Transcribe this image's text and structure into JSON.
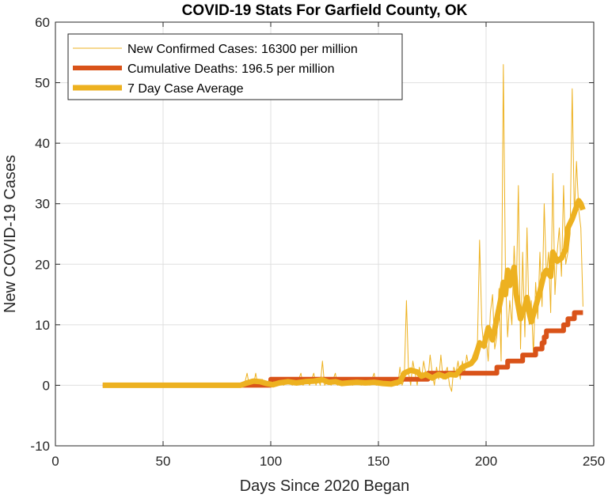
{
  "chart_data": {
    "type": "line",
    "title": "COVID-19 Stats For Garfield County, OK",
    "xlabel": "Days Since 2020 Began",
    "ylabel": "New COVID-19 Cases",
    "xlim": [
      0,
      250
    ],
    "ylim": [
      -10,
      60
    ],
    "xticks": [
      0,
      50,
      100,
      150,
      200,
      250
    ],
    "yticks": [
      -10,
      0,
      10,
      20,
      30,
      40,
      50,
      60
    ],
    "xtick_labels": [
      "0",
      "50",
      "100",
      "150",
      "200",
      "250"
    ],
    "ytick_labels": [
      "-10",
      "0",
      "10",
      "20",
      "30",
      "40",
      "50",
      "60"
    ],
    "grid": true,
    "legend_position": "top-left",
    "series": [
      {
        "name": "New Confirmed Cases: 16300 per million",
        "color": "#EDB120",
        "style": "thin",
        "points": [
          [
            22,
            0
          ],
          [
            86,
            0
          ],
          [
            88,
            0.5
          ],
          [
            89,
            2
          ],
          [
            90,
            0
          ],
          [
            91,
            1
          ],
          [
            92,
            0
          ],
          [
            93,
            2
          ],
          [
            94,
            0
          ],
          [
            96,
            1
          ],
          [
            98,
            0
          ],
          [
            100,
            0
          ],
          [
            101,
            1
          ],
          [
            102,
            0
          ],
          [
            104,
            1
          ],
          [
            106,
            0
          ],
          [
            108,
            1
          ],
          [
            110,
            0
          ],
          [
            111,
            1
          ],
          [
            112,
            0
          ],
          [
            114,
            2
          ],
          [
            115,
            0
          ],
          [
            117,
            1
          ],
          [
            118,
            0
          ],
          [
            120,
            2
          ],
          [
            121,
            0
          ],
          [
            122,
            1
          ],
          [
            123,
            0
          ],
          [
            124,
            4
          ],
          [
            125,
            0
          ],
          [
            127,
            1
          ],
          [
            128,
            0
          ],
          [
            130,
            2
          ],
          [
            131,
            0
          ],
          [
            133,
            1
          ],
          [
            134,
            0
          ],
          [
            136,
            1
          ],
          [
            138,
            0
          ],
          [
            140,
            1
          ],
          [
            142,
            0
          ],
          [
            144,
            1
          ],
          [
            146,
            0
          ],
          [
            148,
            2
          ],
          [
            149,
            0
          ],
          [
            151,
            1
          ],
          [
            153,
            0
          ],
          [
            155,
            1
          ],
          [
            157,
            0
          ],
          [
            159,
            0
          ],
          [
            160,
            3
          ],
          [
            161,
            0
          ],
          [
            162,
            1
          ],
          [
            163,
            14
          ],
          [
            164,
            2
          ],
          [
            165,
            0
          ],
          [
            166,
            4
          ],
          [
            167,
            2
          ],
          [
            168,
            0
          ],
          [
            169,
            3
          ],
          [
            170,
            1
          ],
          [
            171,
            4
          ],
          [
            172,
            2
          ],
          [
            173,
            1
          ],
          [
            174,
            5
          ],
          [
            175,
            2
          ],
          [
            176,
            0
          ],
          [
            177,
            3
          ],
          [
            178,
            1
          ],
          [
            179,
            5
          ],
          [
            180,
            1
          ],
          [
            181,
            2
          ],
          [
            182,
            3
          ],
          [
            183,
            0
          ],
          [
            184,
            -1
          ],
          [
            185,
            3
          ],
          [
            186,
            2
          ],
          [
            187,
            4
          ],
          [
            188,
            1
          ],
          [
            189,
            4
          ],
          [
            190,
            2
          ],
          [
            191,
            5
          ],
          [
            192,
            3
          ],
          [
            193,
            4
          ],
          [
            194,
            5
          ],
          [
            195,
            6
          ],
          [
            196,
            7
          ],
          [
            197,
            24
          ],
          [
            198,
            10
          ],
          [
            199,
            6
          ],
          [
            200,
            8
          ],
          [
            201,
            4
          ],
          [
            202,
            12
          ],
          [
            203,
            15
          ],
          [
            204,
            6
          ],
          [
            205,
            8
          ],
          [
            206,
            16
          ],
          [
            207,
            4
          ],
          [
            208,
            53
          ],
          [
            209,
            18
          ],
          [
            210,
            8
          ],
          [
            211,
            14
          ],
          [
            212,
            10
          ],
          [
            213,
            23
          ],
          [
            214,
            15
          ],
          [
            215,
            33
          ],
          [
            216,
            6
          ],
          [
            217,
            22
          ],
          [
            218,
            8
          ],
          [
            219,
            26
          ],
          [
            220,
            10
          ],
          [
            221,
            14
          ],
          [
            222,
            5
          ],
          [
            223,
            17
          ],
          [
            224,
            11
          ],
          [
            225,
            22
          ],
          [
            226,
            13
          ],
          [
            227,
            30
          ],
          [
            228,
            18
          ],
          [
            229,
            22
          ],
          [
            230,
            12
          ],
          [
            231,
            35
          ],
          [
            232,
            15
          ],
          [
            233,
            22
          ],
          [
            234,
            26
          ],
          [
            235,
            18
          ],
          [
            236,
            33
          ],
          [
            237,
            20
          ],
          [
            238,
            22
          ],
          [
            239,
            25
          ],
          [
            240,
            49
          ],
          [
            241,
            28
          ],
          [
            242,
            37
          ],
          [
            243,
            29
          ],
          [
            244,
            26
          ],
          [
            245,
            13
          ]
        ]
      },
      {
        "name": "Cumulative Deaths: 196.5 per million",
        "color": "#D95319",
        "style": "thick",
        "points": [
          [
            22,
            0
          ],
          [
            100,
            0
          ],
          [
            100,
            1
          ],
          [
            173,
            1
          ],
          [
            173,
            2
          ],
          [
            199,
            2
          ],
          [
            199,
            2
          ],
          [
            205,
            2
          ],
          [
            205,
            3
          ],
          [
            210,
            3
          ],
          [
            210,
            4
          ],
          [
            217,
            4
          ],
          [
            217,
            5
          ],
          [
            223,
            5
          ],
          [
            223,
            6
          ],
          [
            226,
            6
          ],
          [
            226,
            7
          ],
          [
            227,
            7
          ],
          [
            227,
            8
          ],
          [
            228,
            8
          ],
          [
            228,
            9
          ],
          [
            236,
            9
          ],
          [
            236,
            10
          ],
          [
            238,
            10
          ],
          [
            238,
            11
          ],
          [
            241,
            11
          ],
          [
            241,
            12
          ],
          [
            245,
            12
          ]
        ]
      },
      {
        "name": "7 Day Case Average",
        "color": "#EDB120",
        "style": "thickest",
        "points": [
          [
            22,
            0
          ],
          [
            86,
            0
          ],
          [
            89,
            0.4
          ],
          [
            92,
            0.7
          ],
          [
            95,
            0.6
          ],
          [
            98,
            0.3
          ],
          [
            101,
            0.1
          ],
          [
            104,
            0.4
          ],
          [
            108,
            0.6
          ],
          [
            112,
            0.4
          ],
          [
            116,
            0.6
          ],
          [
            120,
            0.7
          ],
          [
            124,
            0.9
          ],
          [
            127,
            0.5
          ],
          [
            130,
            0.6
          ],
          [
            133,
            0.3
          ],
          [
            136,
            0.4
          ],
          [
            140,
            0.5
          ],
          [
            144,
            0.4
          ],
          [
            148,
            0.5
          ],
          [
            152,
            0.3
          ],
          [
            156,
            0.2
          ],
          [
            160,
            0.6
          ],
          [
            162,
            2.0
          ],
          [
            165,
            2.5
          ],
          [
            168,
            2.2
          ],
          [
            170,
            1.5
          ],
          [
            172,
            1.8
          ],
          [
            175,
            1.2
          ],
          [
            178,
            1.8
          ],
          [
            181,
            1.4
          ],
          [
            183,
            1.8
          ],
          [
            186,
            1.7
          ],
          [
            189,
            3.0
          ],
          [
            191,
            3.3
          ],
          [
            193,
            3.6
          ],
          [
            195,
            4.5
          ],
          [
            197,
            7.0
          ],
          [
            199,
            6.5
          ],
          [
            201,
            9.5
          ],
          [
            203,
            7.5
          ],
          [
            205,
            11.0
          ],
          [
            207,
            14.5
          ],
          [
            208,
            17.0
          ],
          [
            209,
            15.0
          ],
          [
            210,
            19.0
          ],
          [
            211,
            16.5
          ],
          [
            213,
            19.5
          ],
          [
            214,
            15.0
          ],
          [
            216,
            11.0
          ],
          [
            218,
            13.0
          ],
          [
            219,
            14.5
          ],
          [
            220,
            12.0
          ],
          [
            221,
            10.5
          ],
          [
            223,
            13.0
          ],
          [
            225,
            15.5
          ],
          [
            227,
            18.5
          ],
          [
            228,
            19.0
          ],
          [
            230,
            18.0
          ],
          [
            231,
            22.0
          ],
          [
            233,
            20.5
          ],
          [
            235,
            21.0
          ],
          [
            237,
            22.5
          ],
          [
            238,
            26.0
          ],
          [
            240,
            27.5
          ],
          [
            241,
            28.5
          ],
          [
            242,
            29.5
          ],
          [
            243,
            30.5
          ],
          [
            244,
            30.0
          ],
          [
            245,
            29.0
          ]
        ]
      }
    ]
  }
}
